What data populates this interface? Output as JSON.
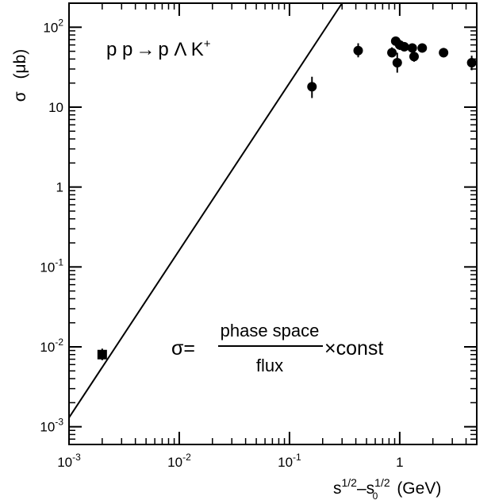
{
  "chart_data": {
    "type": "scatter",
    "xscale": "log",
    "yscale": "log",
    "xlim": [
      0.001,
      5
    ],
    "ylim": [
      0.0006,
      200
    ],
    "grid": false,
    "x_ticks": [
      {
        "value": 0.001,
        "base": "10",
        "exp": "-3"
      },
      {
        "value": 0.01,
        "base": "10",
        "exp": "-2"
      },
      {
        "value": 0.1,
        "base": "10",
        "exp": "-1"
      },
      {
        "value": 1,
        "base": "1",
        "exp": ""
      }
    ],
    "y_ticks": [
      {
        "value": 0.001,
        "base": "10",
        "exp": "-3"
      },
      {
        "value": 0.01,
        "base": "10",
        "exp": "-2"
      },
      {
        "value": 0.1,
        "base": "10",
        "exp": "-1"
      },
      {
        "value": 1,
        "base": "1",
        "exp": ""
      },
      {
        "value": 10,
        "base": "10",
        "exp": ""
      },
      {
        "value": 100,
        "base": "10",
        "exp": "2"
      }
    ],
    "ylabel": {
      "symbol": "σ",
      "unit": "μb"
    },
    "xlabel": {
      "base1": "s",
      "sup1": "1/2",
      "dash": "–",
      "base2": "s",
      "sup2": "1/2",
      "sub2": "0",
      "unit": "(GeV)"
    },
    "reaction": {
      "lhs": "p p",
      "arrow": "→",
      "rhs": "p Λ K",
      "sup": "+"
    },
    "formula": {
      "lhs": "σ=",
      "numerator": "phase space",
      "denominator": "flux",
      "rhs": "×const"
    },
    "series": [
      {
        "marker": "square",
        "points": [
          {
            "x": 0.002,
            "y": 0.008,
            "ylo": 0.0068,
            "yhi": 0.0095
          }
        ]
      },
      {
        "marker": "circle",
        "points": [
          {
            "x": 0.16,
            "y": 18,
            "ylo": 13,
            "yhi": 24
          },
          {
            "x": 0.42,
            "y": 51,
            "ylo": 42,
            "yhi": 63
          },
          {
            "x": 0.85,
            "y": 48,
            "ylo": 42,
            "yhi": 56
          },
          {
            "x": 0.92,
            "y": 67,
            "ylo": 60,
            "yhi": 73
          },
          {
            "x": 0.95,
            "y": 36,
            "ylo": 27,
            "yhi": 48
          },
          {
            "x": 1.0,
            "y": 60,
            "ylo": 52,
            "yhi": 70
          },
          {
            "x": 1.1,
            "y": 57,
            "ylo": 50,
            "yhi": 65
          },
          {
            "x": 1.3,
            "y": 55,
            "ylo": 49,
            "yhi": 62
          },
          {
            "x": 1.35,
            "y": 43,
            "ylo": 37,
            "yhi": 50
          },
          {
            "x": 1.6,
            "y": 55,
            "ylo": 50,
            "yhi": 61
          },
          {
            "x": 2.5,
            "y": 48,
            "ylo": 42,
            "yhi": 55
          },
          {
            "x": 4.5,
            "y": 36,
            "ylo": 29,
            "yhi": 44
          }
        ]
      }
    ],
    "curve": {
      "style": "line",
      "points": [
        [
          0.001,
          0.0013
        ],
        [
          0.3,
          200
        ]
      ]
    }
  }
}
